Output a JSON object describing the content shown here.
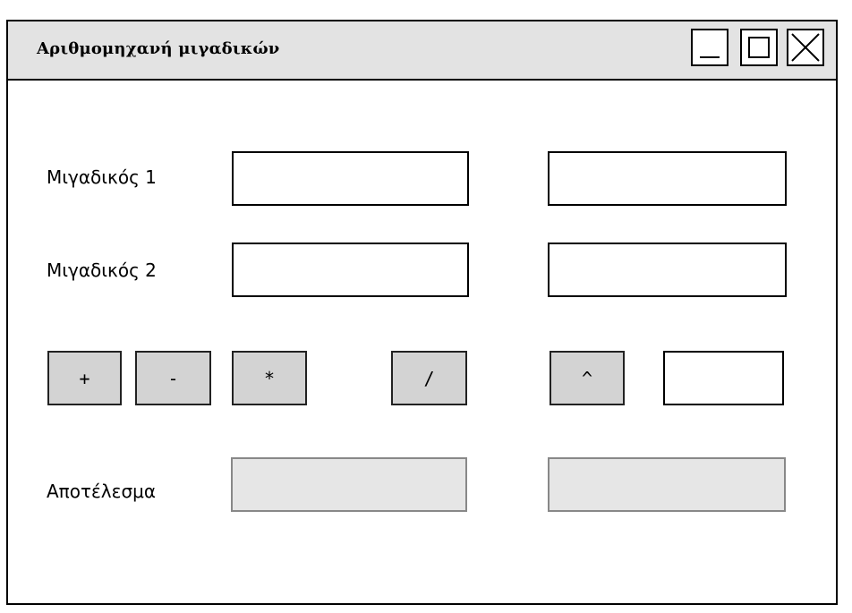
{
  "window": {
    "title": "Αριθμομηχανή μιγαδικών"
  },
  "labels": {
    "complex1": "Μιγαδικός 1",
    "complex2": "Μιγαδικός 2",
    "result": "Αποτέλεσμα"
  },
  "inputs": {
    "c1_real": "",
    "c1_imag": "",
    "c2_real": "",
    "c2_imag": "",
    "power": "",
    "result_real": "",
    "result_imag": ""
  },
  "operators": {
    "add": "+",
    "sub": "-",
    "mul": "*",
    "div": "/",
    "pow": "^"
  },
  "icons": {
    "minimize": "minimize-icon",
    "maximize": "maximize-icon",
    "close": "close-icon"
  }
}
